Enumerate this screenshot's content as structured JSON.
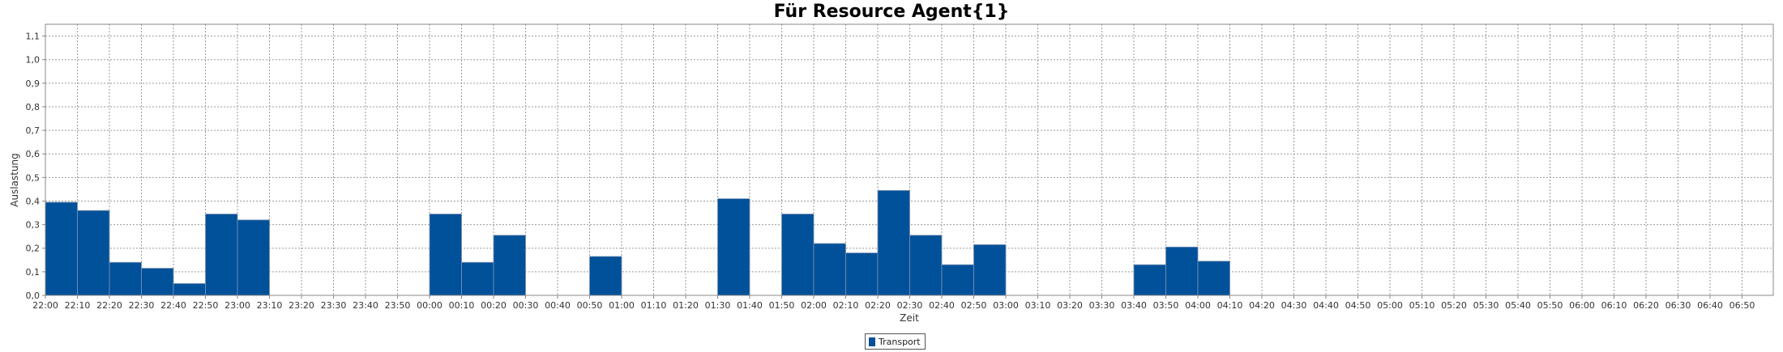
{
  "chart_data": {
    "type": "bar",
    "title": "Für Resource Agent{1}",
    "xlabel": "Zeit",
    "ylabel": "Auslastung",
    "ylim": [
      0,
      1.15
    ],
    "yticks": [
      "0,0",
      "0,1",
      "0,2",
      "0,3",
      "0,4",
      "0,5",
      "0,6",
      "0,7",
      "0,8",
      "0,9",
      "1,0",
      "1,1"
    ],
    "grid": true,
    "legend_position": "bottom-center",
    "categories": [
      "22:00",
      "22:10",
      "22:20",
      "22:30",
      "22:40",
      "22:50",
      "23:00",
      "23:10",
      "23:20",
      "23:30",
      "23:40",
      "23:50",
      "00:00",
      "00:10",
      "00:20",
      "00:30",
      "00:40",
      "00:50",
      "01:00",
      "01:10",
      "01:20",
      "01:30",
      "01:40",
      "01:50",
      "02:00",
      "02:10",
      "02:20",
      "02:30",
      "02:40",
      "02:50",
      "03:00",
      "03:10",
      "03:20",
      "03:30",
      "03:40",
      "03:50",
      "04:00",
      "04:10",
      "04:20",
      "04:30",
      "04:40",
      "04:50",
      "05:00",
      "05:10",
      "05:20",
      "05:30",
      "05:40",
      "05:50",
      "06:00",
      "06:10",
      "06:20",
      "06:30",
      "06:40",
      "06:50"
    ],
    "series": [
      {
        "name": "Transport",
        "color": "#00519a",
        "values": [
          0.395,
          0.36,
          0.14,
          0.115,
          0.05,
          0.345,
          0.32,
          0,
          0,
          0,
          0,
          0,
          0.345,
          0.14,
          0.255,
          0,
          0,
          0.165,
          0,
          0,
          0,
          0.41,
          0,
          0.345,
          0.22,
          0.18,
          0.445,
          0.255,
          0.13,
          0.215,
          0,
          0,
          0,
          0,
          0.13,
          0.205,
          0.145,
          0,
          0,
          0,
          0,
          0,
          0,
          0,
          0,
          0,
          0,
          0,
          0,
          0,
          0,
          0,
          0,
          0
        ]
      }
    ]
  }
}
